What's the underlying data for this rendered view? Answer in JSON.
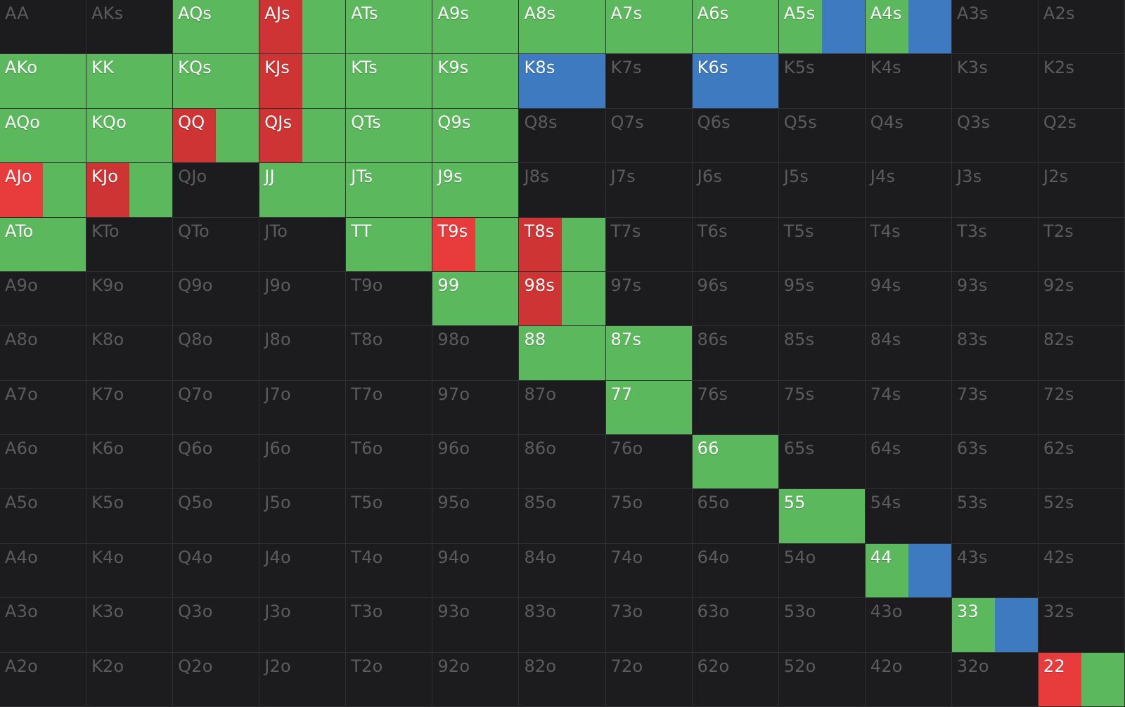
{
  "colors": {
    "background": "#1c1c1e",
    "empty": "#1c1c1e",
    "green": "#5cb85c",
    "red": "#cf3434",
    "light_red": "#e83b3b",
    "blue": "#3e7ac0",
    "text_active": "#ffffff",
    "text_inactive": "#5b5b60"
  },
  "grid": {
    "rows": [
      [
        {
          "hand": "AA",
          "frequencies": []
        },
        {
          "hand": "AKs",
          "frequencies": []
        },
        {
          "hand": "AQs",
          "frequencies": [
            {
              "action": "green",
              "share": 1
            }
          ]
        },
        {
          "hand": "AJs",
          "frequencies": [
            {
              "action": "red",
              "share": 0.5
            },
            {
              "action": "green",
              "share": 0.5
            }
          ]
        },
        {
          "hand": "ATs",
          "frequencies": [
            {
              "action": "green",
              "share": 1
            }
          ]
        },
        {
          "hand": "A9s",
          "frequencies": [
            {
              "action": "green",
              "share": 1
            }
          ]
        },
        {
          "hand": "A8s",
          "frequencies": [
            {
              "action": "green",
              "share": 1
            }
          ]
        },
        {
          "hand": "A7s",
          "frequencies": [
            {
              "action": "green",
              "share": 1
            }
          ]
        },
        {
          "hand": "A6s",
          "frequencies": [
            {
              "action": "green",
              "share": 1
            }
          ]
        },
        {
          "hand": "A5s",
          "frequencies": [
            {
              "action": "green",
              "share": 0.5
            },
            {
              "action": "blue",
              "share": 0.5
            }
          ]
        },
        {
          "hand": "A4s",
          "frequencies": [
            {
              "action": "green",
              "share": 0.5
            },
            {
              "action": "blue",
              "share": 0.5
            }
          ]
        },
        {
          "hand": "A3s",
          "frequencies": []
        },
        {
          "hand": "A2s",
          "frequencies": []
        }
      ],
      [
        {
          "hand": "AKo",
          "frequencies": [
            {
              "action": "green",
              "share": 1
            }
          ]
        },
        {
          "hand": "KK",
          "frequencies": [
            {
              "action": "green",
              "share": 1
            }
          ]
        },
        {
          "hand": "KQs",
          "frequencies": [
            {
              "action": "green",
              "share": 1
            }
          ]
        },
        {
          "hand": "KJs",
          "frequencies": [
            {
              "action": "red",
              "share": 0.5
            },
            {
              "action": "green",
              "share": 0.5
            }
          ]
        },
        {
          "hand": "KTs",
          "frequencies": [
            {
              "action": "green",
              "share": 1
            }
          ]
        },
        {
          "hand": "K9s",
          "frequencies": [
            {
              "action": "green",
              "share": 1
            }
          ]
        },
        {
          "hand": "K8s",
          "frequencies": [
            {
              "action": "blue",
              "share": 1
            }
          ]
        },
        {
          "hand": "K7s",
          "frequencies": []
        },
        {
          "hand": "K6s",
          "frequencies": [
            {
              "action": "blue",
              "share": 1
            }
          ]
        },
        {
          "hand": "K5s",
          "frequencies": []
        },
        {
          "hand": "K4s",
          "frequencies": []
        },
        {
          "hand": "K3s",
          "frequencies": []
        },
        {
          "hand": "K2s",
          "frequencies": []
        }
      ],
      [
        {
          "hand": "AQo",
          "frequencies": [
            {
              "action": "green",
              "share": 1
            }
          ]
        },
        {
          "hand": "KQo",
          "frequencies": [
            {
              "action": "green",
              "share": 1
            }
          ]
        },
        {
          "hand": "QQ",
          "frequencies": [
            {
              "action": "red",
              "share": 0.5
            },
            {
              "action": "green",
              "share": 0.5
            }
          ]
        },
        {
          "hand": "QJs",
          "frequencies": [
            {
              "action": "red",
              "share": 0.5
            },
            {
              "action": "green",
              "share": 0.5
            }
          ]
        },
        {
          "hand": "QTs",
          "frequencies": [
            {
              "action": "green",
              "share": 1
            }
          ]
        },
        {
          "hand": "Q9s",
          "frequencies": [
            {
              "action": "green",
              "share": 1
            }
          ]
        },
        {
          "hand": "Q8s",
          "frequencies": []
        },
        {
          "hand": "Q7s",
          "frequencies": []
        },
        {
          "hand": "Q6s",
          "frequencies": []
        },
        {
          "hand": "Q5s",
          "frequencies": []
        },
        {
          "hand": "Q4s",
          "frequencies": []
        },
        {
          "hand": "Q3s",
          "frequencies": []
        },
        {
          "hand": "Q2s",
          "frequencies": []
        }
      ],
      [
        {
          "hand": "AJo",
          "frequencies": [
            {
              "action": "light_red",
              "share": 0.5
            },
            {
              "action": "green",
              "share": 0.5
            }
          ]
        },
        {
          "hand": "KJo",
          "frequencies": [
            {
              "action": "red",
              "share": 0.5
            },
            {
              "action": "green",
              "share": 0.5
            }
          ]
        },
        {
          "hand": "QJo",
          "frequencies": []
        },
        {
          "hand": "JJ",
          "frequencies": [
            {
              "action": "green",
              "share": 1
            }
          ]
        },
        {
          "hand": "JTs",
          "frequencies": [
            {
              "action": "green",
              "share": 1
            }
          ]
        },
        {
          "hand": "J9s",
          "frequencies": [
            {
              "action": "green",
              "share": 1
            }
          ]
        },
        {
          "hand": "J8s",
          "frequencies": []
        },
        {
          "hand": "J7s",
          "frequencies": []
        },
        {
          "hand": "J6s",
          "frequencies": []
        },
        {
          "hand": "J5s",
          "frequencies": []
        },
        {
          "hand": "J4s",
          "frequencies": []
        },
        {
          "hand": "J3s",
          "frequencies": []
        },
        {
          "hand": "J2s",
          "frequencies": []
        }
      ],
      [
        {
          "hand": "ATo",
          "frequencies": [
            {
              "action": "green",
              "share": 1
            }
          ]
        },
        {
          "hand": "KTo",
          "frequencies": []
        },
        {
          "hand": "QTo",
          "frequencies": []
        },
        {
          "hand": "JTo",
          "frequencies": []
        },
        {
          "hand": "TT",
          "frequencies": [
            {
              "action": "green",
              "share": 1
            }
          ]
        },
        {
          "hand": "T9s",
          "frequencies": [
            {
              "action": "light_red",
              "share": 0.5
            },
            {
              "action": "green",
              "share": 0.5
            }
          ]
        },
        {
          "hand": "T8s",
          "frequencies": [
            {
              "action": "red",
              "share": 0.5
            },
            {
              "action": "green",
              "share": 0.5
            }
          ]
        },
        {
          "hand": "T7s",
          "frequencies": []
        },
        {
          "hand": "T6s",
          "frequencies": []
        },
        {
          "hand": "T5s",
          "frequencies": []
        },
        {
          "hand": "T4s",
          "frequencies": []
        },
        {
          "hand": "T3s",
          "frequencies": []
        },
        {
          "hand": "T2s",
          "frequencies": []
        }
      ],
      [
        {
          "hand": "A9o",
          "frequencies": []
        },
        {
          "hand": "K9o",
          "frequencies": []
        },
        {
          "hand": "Q9o",
          "frequencies": []
        },
        {
          "hand": "J9o",
          "frequencies": []
        },
        {
          "hand": "T9o",
          "frequencies": []
        },
        {
          "hand": "99",
          "frequencies": [
            {
              "action": "green",
              "share": 1
            }
          ]
        },
        {
          "hand": "98s",
          "frequencies": [
            {
              "action": "red",
              "share": 0.5
            },
            {
              "action": "green",
              "share": 0.5
            }
          ]
        },
        {
          "hand": "97s",
          "frequencies": []
        },
        {
          "hand": "96s",
          "frequencies": []
        },
        {
          "hand": "95s",
          "frequencies": []
        },
        {
          "hand": "94s",
          "frequencies": []
        },
        {
          "hand": "93s",
          "frequencies": []
        },
        {
          "hand": "92s",
          "frequencies": []
        }
      ],
      [
        {
          "hand": "A8o",
          "frequencies": []
        },
        {
          "hand": "K8o",
          "frequencies": []
        },
        {
          "hand": "Q8o",
          "frequencies": []
        },
        {
          "hand": "J8o",
          "frequencies": []
        },
        {
          "hand": "T8o",
          "frequencies": []
        },
        {
          "hand": "98o",
          "frequencies": []
        },
        {
          "hand": "88",
          "frequencies": [
            {
              "action": "green",
              "share": 1
            }
          ]
        },
        {
          "hand": "87s",
          "frequencies": [
            {
              "action": "green",
              "share": 1
            }
          ]
        },
        {
          "hand": "86s",
          "frequencies": []
        },
        {
          "hand": "85s",
          "frequencies": []
        },
        {
          "hand": "84s",
          "frequencies": []
        },
        {
          "hand": "83s",
          "frequencies": []
        },
        {
          "hand": "82s",
          "frequencies": []
        }
      ],
      [
        {
          "hand": "A7o",
          "frequencies": []
        },
        {
          "hand": "K7o",
          "frequencies": []
        },
        {
          "hand": "Q7o",
          "frequencies": []
        },
        {
          "hand": "J7o",
          "frequencies": []
        },
        {
          "hand": "T7o",
          "frequencies": []
        },
        {
          "hand": "97o",
          "frequencies": []
        },
        {
          "hand": "87o",
          "frequencies": []
        },
        {
          "hand": "77",
          "frequencies": [
            {
              "action": "green",
              "share": 1
            }
          ]
        },
        {
          "hand": "76s",
          "frequencies": []
        },
        {
          "hand": "75s",
          "frequencies": []
        },
        {
          "hand": "74s",
          "frequencies": []
        },
        {
          "hand": "73s",
          "frequencies": []
        },
        {
          "hand": "72s",
          "frequencies": []
        }
      ],
      [
        {
          "hand": "A6o",
          "frequencies": []
        },
        {
          "hand": "K6o",
          "frequencies": []
        },
        {
          "hand": "Q6o",
          "frequencies": []
        },
        {
          "hand": "J6o",
          "frequencies": []
        },
        {
          "hand": "T6o",
          "frequencies": []
        },
        {
          "hand": "96o",
          "frequencies": []
        },
        {
          "hand": "86o",
          "frequencies": []
        },
        {
          "hand": "76o",
          "frequencies": []
        },
        {
          "hand": "66",
          "frequencies": [
            {
              "action": "green",
              "share": 1
            }
          ]
        },
        {
          "hand": "65s",
          "frequencies": []
        },
        {
          "hand": "64s",
          "frequencies": []
        },
        {
          "hand": "63s",
          "frequencies": []
        },
        {
          "hand": "62s",
          "frequencies": []
        }
      ],
      [
        {
          "hand": "A5o",
          "frequencies": []
        },
        {
          "hand": "K5o",
          "frequencies": []
        },
        {
          "hand": "Q5o",
          "frequencies": []
        },
        {
          "hand": "J5o",
          "frequencies": []
        },
        {
          "hand": "T5o",
          "frequencies": []
        },
        {
          "hand": "95o",
          "frequencies": []
        },
        {
          "hand": "85o",
          "frequencies": []
        },
        {
          "hand": "75o",
          "frequencies": []
        },
        {
          "hand": "65o",
          "frequencies": []
        },
        {
          "hand": "55",
          "frequencies": [
            {
              "action": "green",
              "share": 1
            }
          ]
        },
        {
          "hand": "54s",
          "frequencies": []
        },
        {
          "hand": "53s",
          "frequencies": []
        },
        {
          "hand": "52s",
          "frequencies": []
        }
      ],
      [
        {
          "hand": "A4o",
          "frequencies": []
        },
        {
          "hand": "K4o",
          "frequencies": []
        },
        {
          "hand": "Q4o",
          "frequencies": []
        },
        {
          "hand": "J4o",
          "frequencies": []
        },
        {
          "hand": "T4o",
          "frequencies": []
        },
        {
          "hand": "94o",
          "frequencies": []
        },
        {
          "hand": "84o",
          "frequencies": []
        },
        {
          "hand": "74o",
          "frequencies": []
        },
        {
          "hand": "64o",
          "frequencies": []
        },
        {
          "hand": "54o",
          "frequencies": []
        },
        {
          "hand": "44",
          "frequencies": [
            {
              "action": "green",
              "share": 0.5
            },
            {
              "action": "blue",
              "share": 0.5
            }
          ]
        },
        {
          "hand": "43s",
          "frequencies": []
        },
        {
          "hand": "42s",
          "frequencies": []
        }
      ],
      [
        {
          "hand": "A3o",
          "frequencies": []
        },
        {
          "hand": "K3o",
          "frequencies": []
        },
        {
          "hand": "Q3o",
          "frequencies": []
        },
        {
          "hand": "J3o",
          "frequencies": []
        },
        {
          "hand": "T3o",
          "frequencies": []
        },
        {
          "hand": "93o",
          "frequencies": []
        },
        {
          "hand": "83o",
          "frequencies": []
        },
        {
          "hand": "73o",
          "frequencies": []
        },
        {
          "hand": "63o",
          "frequencies": []
        },
        {
          "hand": "53o",
          "frequencies": []
        },
        {
          "hand": "43o",
          "frequencies": []
        },
        {
          "hand": "33",
          "frequencies": [
            {
              "action": "green",
              "share": 0.5
            },
            {
              "action": "blue",
              "share": 0.5
            }
          ]
        },
        {
          "hand": "32s",
          "frequencies": []
        }
      ],
      [
        {
          "hand": "A2o",
          "frequencies": []
        },
        {
          "hand": "K2o",
          "frequencies": []
        },
        {
          "hand": "Q2o",
          "frequencies": []
        },
        {
          "hand": "J2o",
          "frequencies": []
        },
        {
          "hand": "T2o",
          "frequencies": []
        },
        {
          "hand": "92o",
          "frequencies": []
        },
        {
          "hand": "82o",
          "frequencies": []
        },
        {
          "hand": "72o",
          "frequencies": []
        },
        {
          "hand": "62o",
          "frequencies": []
        },
        {
          "hand": "52o",
          "frequencies": []
        },
        {
          "hand": "42o",
          "frequencies": []
        },
        {
          "hand": "32o",
          "frequencies": []
        },
        {
          "hand": "22",
          "frequencies": [
            {
              "action": "light_red",
              "share": 0.5
            },
            {
              "action": "green",
              "share": 0.5
            }
          ]
        }
      ]
    ]
  }
}
